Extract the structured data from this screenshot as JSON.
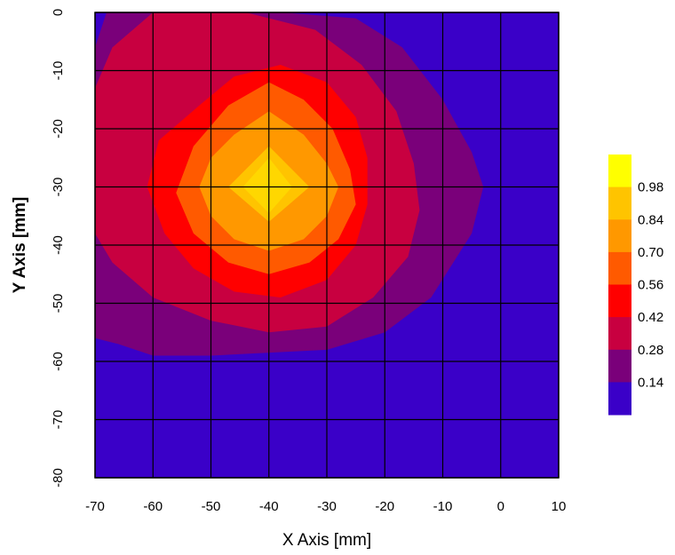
{
  "chart_data": {
    "type": "heatmap",
    "xlabel": "X Axis [mm]",
    "ylabel": "Y Axis [mm]",
    "xlim": [
      -70,
      10
    ],
    "ylim": [
      0,
      -80
    ],
    "x_ticks": [
      "-70",
      "-60",
      "-50",
      "-40",
      "-30",
      "-20",
      "-10",
      "0",
      "10"
    ],
    "y_ticks": [
      "0",
      "-10",
      "-20",
      "-30",
      "-40",
      "-50",
      "-60",
      "-70",
      "-80"
    ],
    "grid": true,
    "colorbar": {
      "position": "right",
      "labels": [
        "0.98",
        "0.84",
        "0.70",
        "0.56",
        "0.42",
        "0.28",
        "0.14"
      ],
      "colors": [
        "#ffff00",
        "#ffc400",
        "#ff9800",
        "#ff5a00",
        "#ff0000",
        "#c80040",
        "#7a007a",
        "#3a00c8"
      ]
    },
    "peak": {
      "x": -40,
      "y": -30,
      "value": 1.0
    },
    "levels": [
      {
        "value": 0.14,
        "color": "#7a007a",
        "boundary": [
          [
            -70,
            -6
          ],
          [
            -68,
            0
          ],
          [
            -38,
            0
          ],
          [
            -25,
            -1
          ],
          [
            -17,
            -6
          ],
          [
            -10,
            -15
          ],
          [
            -5,
            -24
          ],
          [
            -3,
            -30
          ],
          [
            -5,
            -38
          ],
          [
            -12,
            -49
          ],
          [
            -20,
            -55
          ],
          [
            -30,
            -58
          ],
          [
            -50,
            -59
          ],
          [
            -60,
            -59
          ],
          [
            -66,
            -57
          ],
          [
            -70,
            -56
          ]
        ]
      },
      {
        "value": 0.28,
        "color": "#c80040",
        "boundary": [
          [
            -70,
            -13
          ],
          [
            -67,
            -6
          ],
          [
            -60,
            0
          ],
          [
            -44,
            0
          ],
          [
            -32,
            -3
          ],
          [
            -24,
            -9
          ],
          [
            -18,
            -17
          ],
          [
            -15,
            -26
          ],
          [
            -14,
            -34
          ],
          [
            -16,
            -42
          ],
          [
            -22,
            -49
          ],
          [
            -30,
            -54
          ],
          [
            -40,
            -55
          ],
          [
            -50,
            -53
          ],
          [
            -60,
            -49
          ],
          [
            -67,
            -43
          ],
          [
            -70,
            -38
          ]
        ]
      },
      {
        "value": 0.42,
        "color": "#ff0000",
        "boundary": [
          [
            -52,
            -16
          ],
          [
            -46,
            -11
          ],
          [
            -38,
            -9
          ],
          [
            -30,
            -12
          ],
          [
            -25,
            -18
          ],
          [
            -23,
            -25
          ],
          [
            -23,
            -33
          ],
          [
            -25,
            -40
          ],
          [
            -30,
            -46
          ],
          [
            -38,
            -49
          ],
          [
            -46,
            -48
          ],
          [
            -53,
            -44
          ],
          [
            -58,
            -38
          ],
          [
            -61,
            -30
          ],
          [
            -59,
            -22
          ]
        ]
      },
      {
        "value": 0.56,
        "color": "#ff5a00",
        "boundary": [
          [
            -40,
            -12
          ],
          [
            -34,
            -15
          ],
          [
            -29,
            -20
          ],
          [
            -26,
            -27
          ],
          [
            -25,
            -33
          ],
          [
            -28,
            -39
          ],
          [
            -33,
            -43
          ],
          [
            -40,
            -45
          ],
          [
            -47,
            -43
          ],
          [
            -53,
            -38
          ],
          [
            -56,
            -31
          ],
          [
            -53,
            -23
          ],
          [
            -47,
            -16
          ]
        ]
      },
      {
        "value": 0.7,
        "color": "#ff9800",
        "boundary": [
          [
            -40,
            -17
          ],
          [
            -34,
            -21
          ],
          [
            -30,
            -26
          ],
          [
            -28,
            -30
          ],
          [
            -30,
            -35
          ],
          [
            -34,
            -39
          ],
          [
            -40,
            -41
          ],
          [
            -46,
            -39
          ],
          [
            -50,
            -35
          ],
          [
            -52,
            -30
          ],
          [
            -50,
            -25
          ],
          [
            -46,
            -21
          ]
        ]
      },
      {
        "value": 0.84,
        "color": "#ffc400",
        "boundary": [
          [
            -40,
            -23
          ],
          [
            -33,
            -30
          ],
          [
            -40,
            -36
          ],
          [
            -47,
            -30
          ]
        ]
      }
    ]
  }
}
